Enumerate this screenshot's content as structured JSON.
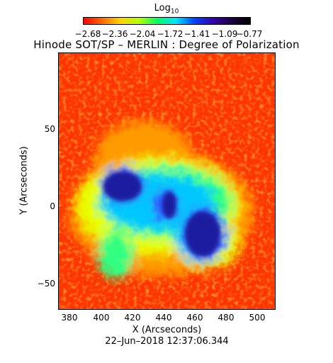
{
  "colorbar": {
    "title": "Log",
    "title_subscript": "10",
    "tick_labels": [
      "−2.68",
      "−2.36",
      "−2.04",
      "−1.72",
      "−1.41",
      "−1.09",
      "−0.77"
    ],
    "colors": [
      "#ff0000",
      "#ff6a00",
      "#ffd400",
      "#b4ff00",
      "#00ff64",
      "#00e4ff",
      "#0040ff",
      "#3a00b0",
      "#1a0040",
      "#000000"
    ]
  },
  "title": "Hinode SOT/SP – MERLIN : Degree of Polarization",
  "axes": {
    "x_label": "X (Arcseconds)",
    "y_label": "Y (Arcseconds)",
    "x_ticks": [
      "380",
      "400",
      "420",
      "440",
      "460",
      "480",
      "500"
    ],
    "y_ticks": [
      "50",
      "0",
      "−50"
    ]
  },
  "timestamp": "22–Jun–2018 12:37:06.344",
  "image": {
    "background_color": "#ff3300",
    "sunspots": [
      {
        "name": "left umbra",
        "color": "#1a1aa0"
      },
      {
        "name": "middle umbra",
        "color": "#1a1aa0"
      },
      {
        "name": "right umbra",
        "color": "#1a1aa0"
      }
    ],
    "plage_colors": [
      "#ff9a00",
      "#e8ff00",
      "#30ff80",
      "#00c8ff",
      "#2d52ff",
      "#1a1aa0"
    ]
  }
}
